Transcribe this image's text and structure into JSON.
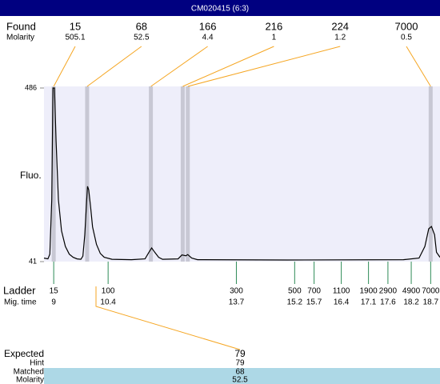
{
  "header": {
    "title": "CM020415 (6:3)"
  },
  "chart_data": {
    "type": "line",
    "y_label": "Fluo.",
    "xlim": [
      8.75,
      18.94
    ],
    "ylim": [
      41,
      486
    ],
    "yticks": [
      486,
      41
    ],
    "trace": {
      "x": [
        8.75,
        8.85,
        8.9,
        8.95,
        8.98,
        9.02,
        9.06,
        9.12,
        9.2,
        9.3,
        9.4,
        9.5,
        9.6,
        9.7,
        9.75,
        9.8,
        9.85,
        9.87,
        9.9,
        9.95,
        10.0,
        10.1,
        10.2,
        10.3,
        10.5,
        11.0,
        11.35,
        11.45,
        11.52,
        11.6,
        11.7,
        11.8,
        12.2,
        12.3,
        12.4,
        12.45,
        12.55,
        12.7,
        15.0,
        18.0,
        18.4,
        18.55,
        18.65,
        18.72,
        18.8,
        18.85,
        18.94
      ],
      "values": [
        50,
        48,
        60,
        200,
        486,
        486,
        350,
        200,
        120,
        80,
        60,
        52,
        48,
        47,
        55,
        110,
        200,
        234,
        225,
        180,
        130,
        85,
        62,
        52,
        47,
        46,
        48,
        65,
        76,
        65,
        52,
        47,
        48,
        58,
        56,
        59,
        50,
        46,
        45,
        46,
        50,
        80,
        125,
        131,
        110,
        65,
        52
      ]
    },
    "found": {
      "label": "Found",
      "molarity_label": "Molarity",
      "sizes": [
        15,
        68,
        166,
        216,
        224,
        7000
      ],
      "molarities": [
        505.1,
        52.5,
        4.4,
        1,
        1.2,
        0.5
      ],
      "x": [
        9.0,
        9.86,
        11.5,
        12.32,
        12.45,
        18.7
      ]
    },
    "ladder": {
      "label": "Ladder",
      "time_label": "Mig. time",
      "sizes": [
        15,
        100,
        300,
        500,
        700,
        1100,
        1900,
        2900,
        4900,
        7000
      ],
      "times": [
        9,
        10.4,
        13.7,
        15.2,
        15.7,
        16.4,
        17.1,
        17.6,
        18.2,
        18.7
      ]
    },
    "expected": {
      "labels": [
        "Expected",
        "Hint",
        "Matched",
        "Molarity"
      ],
      "values": [
        79,
        79,
        68,
        52.5
      ]
    }
  }
}
